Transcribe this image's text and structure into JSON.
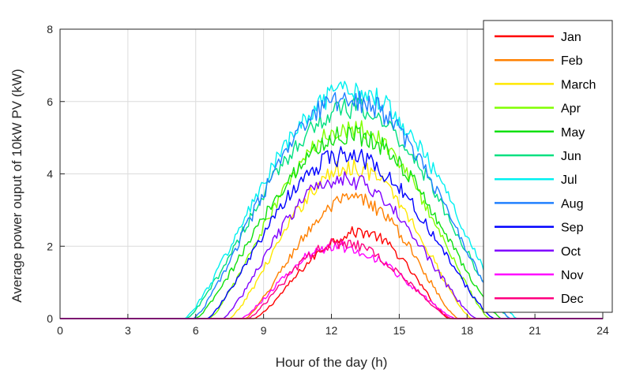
{
  "chart_data": {
    "type": "line",
    "xlabel": "Hour of the day (h)",
    "ylabel": "Average power ouput of 10kW PV (kW)",
    "xlim": [
      0,
      24
    ],
    "ylim": [
      0,
      8
    ],
    "xticks": [
      0,
      3,
      6,
      9,
      12,
      15,
      18,
      21,
      24
    ],
    "yticks": [
      0,
      2,
      4,
      6,
      8
    ],
    "grid": true,
    "legend_position": "right",
    "series": [
      {
        "name": "Jan",
        "color": "#ff0000",
        "start": 8.6,
        "end": 17.2,
        "peak_hour": 13.3,
        "peak": 2.4,
        "noise": 0.18
      },
      {
        "name": "Feb",
        "color": "#ff8000",
        "start": 8.2,
        "end": 17.6,
        "peak_hour": 13.0,
        "peak": 3.3,
        "noise": 0.25
      },
      {
        "name": "March",
        "color": "#ffe800",
        "start": 7.5,
        "end": 18.2,
        "peak_hour": 12.9,
        "peak": 4.2,
        "noise": 0.28
      },
      {
        "name": "Apr",
        "color": "#80ff00",
        "start": 6.6,
        "end": 19.0,
        "peak_hour": 12.9,
        "peak": 5.3,
        "noise": 0.32
      },
      {
        "name": "May",
        "color": "#10e010",
        "start": 6.0,
        "end": 19.5,
        "peak_hour": 12.9,
        "peak": 5.1,
        "noise": 0.32
      },
      {
        "name": "Jun",
        "color": "#00e080",
        "start": 5.6,
        "end": 19.9,
        "peak_hour": 12.9,
        "peak": 5.8,
        "noise": 0.35
      },
      {
        "name": "Jul",
        "color": "#00f0f0",
        "start": 5.5,
        "end": 20.2,
        "peak_hour": 13.0,
        "peak": 6.3,
        "noise": 0.38
      },
      {
        "name": "Aug",
        "color": "#2080ff",
        "start": 5.9,
        "end": 19.9,
        "peak_hour": 12.8,
        "peak": 6.1,
        "noise": 0.38
      },
      {
        "name": "Sep",
        "color": "#0000ff",
        "start": 6.5,
        "end": 19.2,
        "peak_hour": 12.6,
        "peak": 4.5,
        "noise": 0.3
      },
      {
        "name": "Oct",
        "color": "#8000ff",
        "start": 7.2,
        "end": 18.4,
        "peak_hour": 12.4,
        "peak": 3.9,
        "noise": 0.28
      },
      {
        "name": "Nov",
        "color": "#ff00ff",
        "start": 8.0,
        "end": 17.5,
        "peak_hour": 12.2,
        "peak": 2.0,
        "noise": 0.18
      },
      {
        "name": "Dec",
        "color": "#ff0080",
        "start": 8.3,
        "end": 17.3,
        "peak_hour": 12.4,
        "peak": 2.1,
        "noise": 0.18
      }
    ]
  }
}
